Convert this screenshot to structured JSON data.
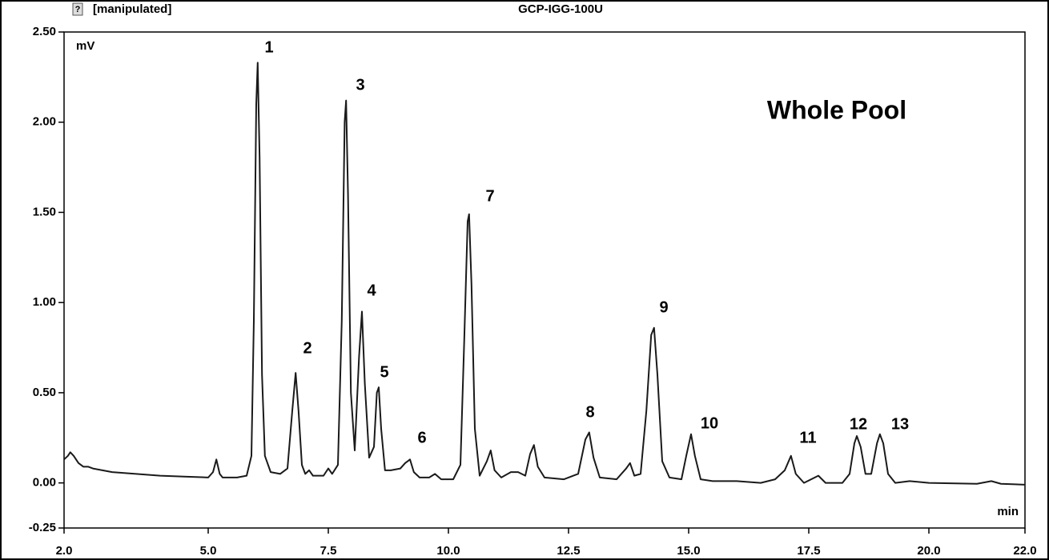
{
  "chart_data": {
    "type": "line",
    "status": "[manipulated]",
    "title": "GCP-IGG-100U",
    "y_label": "mV",
    "x_label": "min",
    "annotation": "Whole Pool",
    "peak_labels": [
      "1",
      "2",
      "3",
      "4",
      "5",
      "6",
      "7",
      "8",
      "9",
      "10",
      "11",
      "12",
      "13"
    ],
    "color": "#1a1a1a",
    "grid": false,
    "xlim": [
      2.0,
      22.0
    ],
    "xticks": [
      {
        "value": 2.0,
        "label": "2.0"
      },
      {
        "value": 5.0,
        "label": "5.0"
      },
      {
        "value": 7.5,
        "label": "7.5"
      },
      {
        "value": 10.0,
        "label": "10.0"
      },
      {
        "value": 12.5,
        "label": "12.5"
      },
      {
        "value": 15.0,
        "label": "15.0"
      },
      {
        "value": 17.5,
        "label": "17.5"
      },
      {
        "value": 20.0,
        "label": "20.0"
      },
      {
        "value": 22.0,
        "label": "22.0"
      }
    ],
    "ylim": [
      -0.25,
      2.5
    ],
    "yticks": [
      {
        "value": -0.25,
        "label": "-0.25"
      },
      {
        "value": 0,
        "label": "0.00"
      },
      {
        "value": 0.5,
        "label": "0.50"
      },
      {
        "value": 1.0,
        "label": "1.00"
      },
      {
        "value": 1.5,
        "label": "1.50"
      },
      {
        "value": 2.0,
        "label": "2.00"
      },
      {
        "value": 2.5,
        "label": "2.50"
      }
    ],
    "x": [
      2.0,
      2.08,
      2.13,
      2.2,
      2.3,
      2.4,
      2.5,
      2.6,
      2.8,
      3.0,
      3.5,
      4.0,
      4.5,
      5.0,
      5.1,
      5.17,
      5.24,
      5.3,
      5.6,
      5.8,
      5.9,
      5.95,
      6.0,
      6.03,
      6.07,
      6.12,
      6.18,
      6.3,
      6.5,
      6.65,
      6.75,
      6.82,
      6.88,
      6.95,
      7.02,
      7.1,
      7.18,
      7.4,
      7.5,
      7.58,
      7.7,
      7.78,
      7.84,
      7.87,
      7.91,
      7.97,
      8.05,
      8.14,
      8.2,
      8.26,
      8.35,
      8.45,
      8.51,
      8.55,
      8.6,
      8.68,
      8.8,
      9.0,
      9.1,
      9.2,
      9.28,
      9.4,
      9.6,
      9.72,
      9.85,
      10.1,
      10.25,
      10.33,
      10.4,
      10.43,
      10.48,
      10.55,
      10.65,
      10.8,
      10.88,
      10.96,
      11.1,
      11.3,
      11.45,
      11.6,
      11.7,
      11.78,
      11.86,
      12.0,
      12.4,
      12.7,
      12.85,
      12.93,
      13.02,
      13.15,
      13.5,
      13.7,
      13.78,
      13.87,
      14.0,
      14.12,
      14.22,
      14.28,
      14.35,
      14.45,
      14.6,
      14.85,
      14.95,
      15.05,
      15.13,
      15.25,
      15.5,
      16.0,
      16.5,
      16.8,
      17.0,
      17.13,
      17.23,
      17.4,
      17.7,
      17.85,
      18.2,
      18.35,
      18.45,
      18.5,
      18.58,
      18.68,
      18.8,
      18.92,
      18.98,
      19.05,
      19.15,
      19.3,
      19.6,
      20.0,
      21.0,
      21.3,
      21.5,
      22.0
    ],
    "values": [
      0.13,
      0.15,
      0.17,
      0.15,
      0.11,
      0.09,
      0.09,
      0.08,
      0.07,
      0.06,
      0.05,
      0.04,
      0.035,
      0.03,
      0.06,
      0.13,
      0.05,
      0.03,
      0.03,
      0.04,
      0.15,
      0.9,
      2.1,
      2.33,
      1.8,
      0.6,
      0.15,
      0.06,
      0.05,
      0.08,
      0.4,
      0.61,
      0.4,
      0.1,
      0.05,
      0.07,
      0.04,
      0.04,
      0.08,
      0.05,
      0.1,
      0.9,
      2.0,
      2.12,
      1.6,
      0.5,
      0.18,
      0.7,
      0.95,
      0.55,
      0.14,
      0.2,
      0.5,
      0.53,
      0.3,
      0.07,
      0.07,
      0.08,
      0.11,
      0.13,
      0.06,
      0.03,
      0.03,
      0.05,
      0.02,
      0.02,
      0.1,
      0.8,
      1.45,
      1.49,
      1.1,
      0.3,
      0.04,
      0.12,
      0.18,
      0.07,
      0.03,
      0.06,
      0.06,
      0.04,
      0.16,
      0.21,
      0.09,
      0.03,
      0.02,
      0.05,
      0.24,
      0.28,
      0.14,
      0.03,
      0.02,
      0.08,
      0.11,
      0.04,
      0.05,
      0.4,
      0.82,
      0.86,
      0.6,
      0.12,
      0.03,
      0.02,
      0.15,
      0.27,
      0.15,
      0.02,
      0.01,
      0.01,
      0.0,
      0.02,
      0.07,
      0.15,
      0.05,
      0.0,
      0.04,
      0.0,
      0.0,
      0.05,
      0.22,
      0.26,
      0.2,
      0.05,
      0.05,
      0.22,
      0.27,
      0.22,
      0.05,
      0.0,
      0.01,
      0.0,
      -0.005,
      0.01,
      -0.005,
      -0.01
    ]
  }
}
